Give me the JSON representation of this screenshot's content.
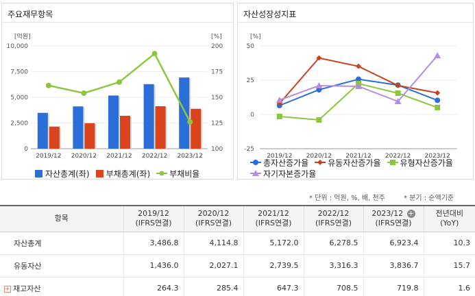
{
  "left_panel": {
    "title": "주요재무항목"
  },
  "right_panel": {
    "title": "자산성장성지표"
  },
  "chart_data": [
    {
      "type": "bar",
      "title": "주요재무항목",
      "categories": [
        "2019/12",
        "2020/12",
        "2021/12",
        "2022/12",
        "2023/12"
      ],
      "y_left": {
        "unit": "[억원]",
        "ylim": [
          0,
          10000
        ],
        "ticks": [
          "0",
          "2,500",
          "5,000",
          "7,500",
          "10,000"
        ]
      },
      "y_right": {
        "unit": "[%]",
        "ylim": [
          100,
          200
        ],
        "ticks": [
          "100",
          "125",
          "150",
          "175",
          "200"
        ]
      },
      "series": [
        {
          "name": "자산총계(좌)",
          "type": "bar",
          "axis": "left",
          "color": "#2a6fd8",
          "values": [
            3486.8,
            4114.8,
            5172.0,
            6278.5,
            6923.4
          ]
        },
        {
          "name": "부채총계(좌)",
          "type": "bar",
          "axis": "left",
          "color": "#d9441c",
          "values": [
            2150,
            2480,
            3200,
            4130,
            3880
          ]
        },
        {
          "name": "부채비율",
          "type": "line",
          "axis": "right",
          "color": "#8cc63f",
          "values": [
            161.5,
            154.0,
            164.8,
            192.5,
            126.0
          ]
        }
      ],
      "legend_position": "bottom"
    },
    {
      "type": "line",
      "title": "자산성장성지표",
      "categories": [
        "2019/12",
        "2020/12",
        "2021/12",
        "2022/12",
        "2023/12"
      ],
      "y": {
        "unit": "[%]",
        "ylim": [
          -25,
          50
        ],
        "ticks": [
          "-25",
          "0",
          "25",
          "50"
        ]
      },
      "series": [
        {
          "name": "총자산증가율",
          "color": "#2a6fd8",
          "marker": "circle",
          "values": [
            6.5,
            18.0,
            25.7,
            21.4,
            10.3
          ]
        },
        {
          "name": "유동자산증가율",
          "color": "#c8421d",
          "marker": "diamond",
          "values": [
            8.0,
            41.2,
            35.1,
            21.1,
            15.7
          ]
        },
        {
          "name": "유형자산증가율",
          "color": "#8cc63f",
          "marker": "square",
          "values": [
            -1.5,
            -4.0,
            22.5,
            15.5,
            5.0
          ]
        },
        {
          "name": "자기자본증가율",
          "color": "#b38ee0",
          "marker": "triangle",
          "values": [
            10.5,
            21.0,
            20.5,
            9.5,
            43.0
          ]
        }
      ],
      "legend_position": "bottom"
    }
  ],
  "notes": {
    "units": "* 단위 : 억원, %, 배, 천주",
    "period": "* 분기 : 순액기준"
  },
  "table": {
    "headers": [
      {
        "line1": "항목",
        "line2": ""
      },
      {
        "line1": "2019/12",
        "line2": "(IFRS연결)"
      },
      {
        "line1": "2020/12",
        "line2": "(IFRS연결)"
      },
      {
        "line1": "2021/12",
        "line2": "(IFRS연결)"
      },
      {
        "line1": "2022/12",
        "line2": "(IFRS연결)"
      },
      {
        "line1": "2023/12",
        "line2": "(IFRS연결)"
      },
      {
        "line1": "전년대비",
        "line2": "(YoY)"
      }
    ],
    "rows": [
      {
        "label": "자산총계",
        "values": [
          "3,486.8",
          "4,114.8",
          "5,172.0",
          "6,278.5",
          "6,923.4",
          "10.3"
        ]
      },
      {
        "label": "유동자산",
        "values": [
          "1,436.0",
          "2,027.1",
          "2,739.5",
          "3,316.3",
          "3,836.7",
          "15.7"
        ]
      },
      {
        "label": "재고자산",
        "values": [
          "264.3",
          "285.4",
          "647.3",
          "708.5",
          "719.8",
          "1.6"
        ]
      }
    ]
  }
}
